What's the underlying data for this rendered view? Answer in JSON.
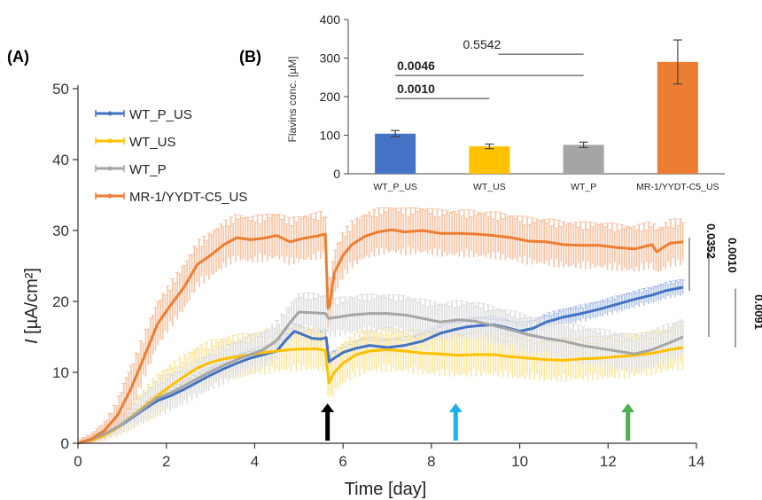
{
  "figure_title": "",
  "chart_data": [
    {
      "panel_label": "(A)",
      "type": "line",
      "title": "",
      "xlabel": "Time [day]",
      "ylabel_italic": "I",
      "ylabel_rest": " [µA/cm²]",
      "xlim": [
        0,
        14
      ],
      "ylim": [
        0,
        50
      ],
      "xticks": [
        0,
        2,
        4,
        6,
        8,
        10,
        12,
        14
      ],
      "yticks": [
        0,
        10,
        20,
        30,
        40,
        50
      ],
      "grid": false,
      "legend_position": "top-left",
      "series": [
        {
          "name": "WT_P_US",
          "color": "#4472C4",
          "error_color": "#aec3e8",
          "x": [
            0,
            0.3,
            0.6,
            0.9,
            1.2,
            1.5,
            1.8,
            2.1,
            2.4,
            2.7,
            3.0,
            3.3,
            3.6,
            3.9,
            4.2,
            4.5,
            4.7,
            4.9,
            5.1,
            5.3,
            5.5,
            5.62,
            5.68,
            5.8,
            6.0,
            6.3,
            6.6,
            7.0,
            7.4,
            7.8,
            8.2,
            8.5,
            8.8,
            9.1,
            9.4,
            9.7,
            10.0,
            10.3,
            10.6,
            11.0,
            11.4,
            11.8,
            12.2,
            12.6,
            13.0,
            13.3,
            13.7
          ],
          "y": [
            0,
            0.5,
            1.3,
            2.2,
            3.5,
            4.8,
            6.0,
            6.7,
            7.6,
            8.6,
            9.6,
            10.5,
            11.3,
            12.0,
            12.5,
            13.0,
            14.5,
            15.8,
            15.3,
            14.8,
            14.7,
            14.9,
            11.5,
            12.0,
            12.8,
            13.4,
            13.8,
            13.5,
            13.8,
            14.4,
            15.5,
            16.0,
            16.4,
            16.6,
            16.7,
            16.3,
            15.8,
            16.2,
            17.1,
            17.8,
            18.3,
            18.9,
            19.6,
            20.3,
            20.9,
            21.5,
            22.0
          ],
          "err": 1.0
        },
        {
          "name": "WT_US",
          "color": "#FFC000",
          "error_color": "#fbe6a0",
          "x": [
            0,
            0.3,
            0.6,
            0.9,
            1.2,
            1.5,
            1.8,
            2.1,
            2.4,
            2.7,
            3.0,
            3.3,
            3.6,
            3.9,
            4.2,
            4.5,
            4.8,
            5.1,
            5.4,
            5.6,
            5.68,
            5.8,
            6.0,
            6.3,
            6.6,
            7.0,
            7.4,
            7.8,
            8.2,
            8.6,
            9.0,
            9.4,
            9.8,
            10.2,
            10.6,
            11.0,
            11.4,
            11.8,
            12.2,
            12.6,
            13.0,
            13.4,
            13.7
          ],
          "y": [
            0,
            0.4,
            1.1,
            2.2,
            3.7,
            5.2,
            6.7,
            8.1,
            9.4,
            10.6,
            11.4,
            11.9,
            12.2,
            12.5,
            12.8,
            13.0,
            13.2,
            13.3,
            13.3,
            13.1,
            8.5,
            10.0,
            11.3,
            12.5,
            13.0,
            13.2,
            13.0,
            12.7,
            12.6,
            12.4,
            12.5,
            12.5,
            12.2,
            12.0,
            11.8,
            11.7,
            11.9,
            12.0,
            12.2,
            12.4,
            12.7,
            13.2,
            13.5
          ],
          "err": 2.6
        },
        {
          "name": "WT_P",
          "color": "#A5A5A5",
          "error_color": "#dedede",
          "x": [
            0,
            0.3,
            0.6,
            0.9,
            1.2,
            1.5,
            1.8,
            2.1,
            2.4,
            2.7,
            3.0,
            3.3,
            3.6,
            3.9,
            4.2,
            4.5,
            4.8,
            5.0,
            5.3,
            5.6,
            5.68,
            5.9,
            6.2,
            6.6,
            7.0,
            7.4,
            7.8,
            8.2,
            8.6,
            9.0,
            9.4,
            9.8,
            10.2,
            10.6,
            11.0,
            11.4,
            11.8,
            12.2,
            12.6,
            13.0,
            13.4,
            13.7
          ],
          "y": [
            0,
            0.5,
            1.3,
            2.3,
            3.6,
            5.0,
            6.4,
            7.1,
            8.1,
            9.1,
            10.1,
            11.0,
            11.8,
            12.5,
            13.2,
            14.5,
            17.0,
            18.5,
            18.4,
            18.3,
            17.6,
            17.8,
            18.1,
            18.3,
            18.3,
            18.1,
            17.6,
            17.1,
            17.4,
            17.2,
            16.6,
            16.0,
            15.3,
            14.8,
            14.4,
            13.8,
            13.4,
            13.0,
            12.6,
            13.2,
            14.2,
            15.0
          ],
          "err": 2.3
        },
        {
          "name": "MR-1/YYDT-C5_US",
          "color": "#ED7D31",
          "error_color": "#f7c2a2",
          "x": [
            0,
            0.3,
            0.6,
            0.9,
            1.2,
            1.5,
            1.8,
            2.1,
            2.4,
            2.7,
            3.0,
            3.3,
            3.6,
            3.9,
            4.2,
            4.5,
            4.8,
            5.1,
            5.4,
            5.6,
            5.66,
            5.7,
            5.8,
            6.0,
            6.2,
            6.5,
            6.8,
            7.1,
            7.4,
            7.8,
            8.2,
            8.6,
            9.0,
            9.4,
            9.8,
            10.2,
            10.6,
            11.0,
            11.4,
            11.8,
            12.2,
            12.6,
            13.0,
            13.1,
            13.4,
            13.7
          ],
          "y": [
            0,
            0.6,
            1.8,
            4.0,
            7.7,
            12.2,
            16.8,
            19.5,
            22.0,
            25.2,
            26.5,
            28.0,
            29.0,
            28.7,
            28.9,
            29.3,
            28.4,
            28.9,
            29.2,
            29.5,
            19.0,
            19.5,
            24.0,
            26.5,
            28.0,
            29.2,
            29.8,
            30.1,
            29.8,
            30.0,
            29.6,
            29.6,
            29.5,
            29.3,
            29.0,
            28.5,
            28.4,
            28.0,
            27.9,
            27.9,
            27.6,
            27.4,
            28.0,
            27.0,
            28.2,
            28.4
          ],
          "err": 2.8
        }
      ],
      "arrows": [
        {
          "x": 5.65,
          "color": "#000000",
          "name": "black"
        },
        {
          "x": 8.55,
          "color": "#1ab1f0",
          "name": "blue"
        },
        {
          "x": 12.45,
          "color": "#4caf50",
          "name": "green"
        }
      ],
      "stats": [
        {
          "text": "0.0352",
          "bold": true
        },
        {
          "text": "0.0010",
          "bold": true
        },
        {
          "text": "0.0091",
          "bold": true
        }
      ]
    },
    {
      "panel_label": "(B)",
      "type": "bar",
      "title": "",
      "xlabel": "",
      "ylabel": "Flavins conc. [µM]",
      "ylim": [
        0,
        400
      ],
      "yticks": [
        0,
        100,
        200,
        300,
        400
      ],
      "categories": [
        "WT_P_US",
        "WT_US",
        "WT_P",
        "MR-1/YYDT-C5_US"
      ],
      "values": [
        104,
        71,
        75,
        290
      ],
      "errors": [
        8,
        6,
        7,
        57
      ],
      "colors": [
        "#4472C4",
        "#FFC000",
        "#A5A5A5",
        "#ED7D31"
      ],
      "comparisons": [
        {
          "from": 0,
          "to": 2,
          "level": 310,
          "text": "0.5542",
          "bold": false,
          "label_pos": "right"
        },
        {
          "from": 0,
          "to": 2,
          "level": 255,
          "text": "0.0046",
          "bold": true,
          "label_pos": "left"
        },
        {
          "from": 0,
          "to": 1,
          "level": 195,
          "text": "0.0010",
          "bold": true,
          "label_pos": "left"
        }
      ]
    }
  ]
}
